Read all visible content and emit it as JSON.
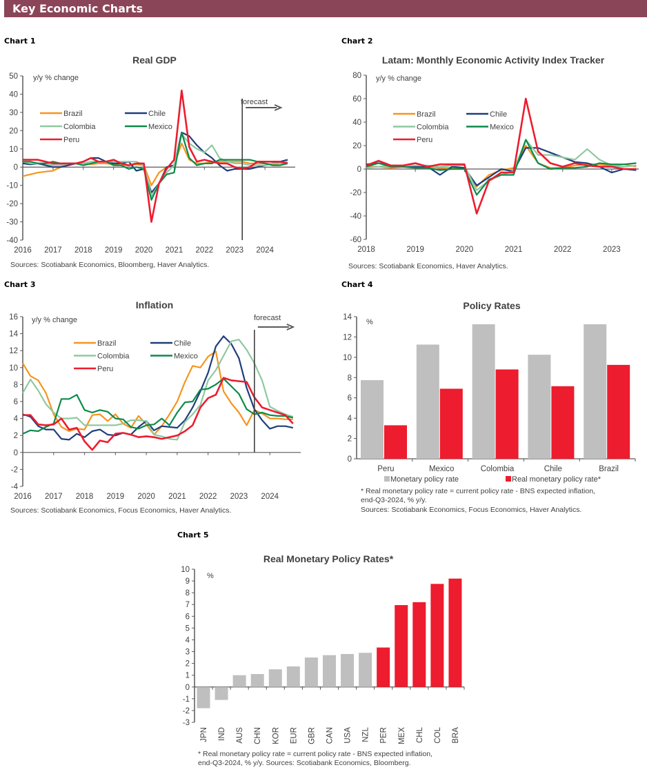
{
  "header": {
    "title": "Key Economic Charts",
    "color": "#8b4559"
  },
  "colors": {
    "Brazil": "#f7941d",
    "Chile": "#1f3d7a",
    "Colombia": "#8fc8a0",
    "Mexico": "#0a8a4a",
    "Peru": "#ed1c2e",
    "gray_bar": "#bfbfbf",
    "red_bar": "#ed1c2e"
  },
  "chart_data": [
    {
      "label": "Chart 1",
      "type": "line",
      "title": "Real GDP",
      "ylabel": "y/y % change",
      "xlim": [
        2016,
        2025
      ],
      "ylim": [
        -40,
        50
      ],
      "yticks": [
        "50",
        "40",
        "30",
        "20",
        "10",
        "0",
        "-10",
        "-20",
        "-30",
        "-40"
      ],
      "xticks": [
        "2016",
        "2017",
        "2018",
        "2019",
        "2020",
        "2021",
        "2022",
        "2023",
        "2024"
      ],
      "forecast_from": 2023.25,
      "forecast_label": "forecast",
      "source": "Sources: Scotiabank Economics, Bloomberg, Haver Analytics.",
      "x": [
        2016,
        2016.25,
        2016.5,
        2016.75,
        2017,
        2017.25,
        2017.5,
        2017.75,
        2018,
        2018.25,
        2018.5,
        2018.75,
        2019,
        2019.25,
        2019.5,
        2019.75,
        2020,
        2020.25,
        2020.5,
        2020.75,
        2021,
        2021.25,
        2021.5,
        2021.75,
        2022,
        2022.25,
        2022.5,
        2022.75,
        2023,
        2023.25,
        2023.5,
        2023.75,
        2024,
        2024.25,
        2024.5,
        2024.75
      ],
      "series": [
        {
          "name": "Brazil",
          "values": [
            -5,
            -4,
            -3,
            -2.5,
            -2,
            0,
            1,
            2,
            2,
            1.5,
            2,
            2,
            1.5,
            1,
            1,
            1.5,
            1,
            -10,
            -3,
            0,
            1,
            13,
            4,
            2,
            2,
            3,
            3,
            3,
            3,
            3,
            2,
            2,
            2,
            1.5,
            2,
            2
          ]
        },
        {
          "name": "Chile",
          "values": [
            2,
            1.5,
            2,
            1,
            0,
            0,
            1,
            2,
            3,
            5,
            5,
            3,
            2,
            2,
            3,
            -2,
            -1,
            -14,
            -9,
            0,
            1,
            19,
            17,
            12,
            8,
            5,
            1,
            -2,
            -1,
            -1,
            -1,
            0,
            1,
            2,
            3,
            4
          ]
        },
        {
          "name": "Colombia",
          "values": [
            3,
            2,
            2,
            2,
            1,
            1,
            2,
            2,
            2,
            3,
            3,
            3,
            3,
            3,
            3,
            3,
            1,
            -16,
            -9,
            -3,
            1,
            18,
            13,
            10,
            8,
            12,
            5,
            3,
            2,
            2,
            1,
            1,
            1,
            2,
            2,
            3
          ]
        },
        {
          "name": "Mexico",
          "values": [
            3,
            3,
            2,
            2,
            3,
            2,
            2,
            2,
            1,
            2,
            3,
            3,
            1,
            1,
            -1,
            0,
            -1,
            -18,
            -9,
            -4,
            -3,
            19,
            5,
            1,
            2,
            2,
            4,
            4,
            4,
            4,
            4,
            3,
            2,
            1,
            1,
            2
          ]
        },
        {
          "name": "Peru",
          "values": [
            4,
            4,
            4,
            3,
            2,
            2,
            2,
            2,
            3,
            5,
            3,
            3,
            4,
            2,
            1,
            2,
            2,
            -30,
            -9,
            -1,
            4,
            42,
            11,
            3,
            4,
            3,
            2,
            2,
            0,
            -1,
            0,
            3,
            3,
            3,
            3,
            2
          ]
        }
      ]
    },
    {
      "label": "Chart 2",
      "type": "line",
      "title": "Latam: Monthly Economic Activity Index Tracker",
      "ylabel": "y/y % change",
      "xlim": [
        2018,
        2023.55
      ],
      "ylim": [
        -60,
        80
      ],
      "yticks": [
        "80",
        "60",
        "40",
        "20",
        "0",
        "-20",
        "-40",
        "-60"
      ],
      "xticks": [
        "2018",
        "2019",
        "2020",
        "2021",
        "2022",
        "2023"
      ],
      "source": "Sources: Scotiabank Economics, Haver Analytics.",
      "x": [
        2018,
        2018.25,
        2018.5,
        2018.75,
        2019,
        2019.25,
        2019.5,
        2019.75,
        2020,
        2020.25,
        2020.5,
        2020.75,
        2021,
        2021.25,
        2021.5,
        2021.75,
        2022,
        2022.25,
        2022.5,
        2022.75,
        2023,
        2023.25,
        2023.5
      ],
      "series": [
        {
          "name": "Brazil",
          "values": [
            2,
            2,
            1,
            2,
            1,
            2,
            1,
            1,
            1,
            -15,
            -5,
            -1,
            1,
            20,
            5,
            1,
            1,
            3,
            4,
            4,
            3,
            4,
            2
          ]
        },
        {
          "name": "Chile",
          "values": [
            4,
            5,
            3,
            2,
            2,
            2,
            -5,
            2,
            1,
            -14,
            -7,
            0,
            -2,
            18,
            18,
            14,
            10,
            6,
            5,
            2,
            -3,
            0,
            -1
          ]
        },
        {
          "name": "Colombia",
          "values": [
            1,
            2,
            3,
            3,
            3,
            3,
            2,
            3,
            3,
            -18,
            -10,
            -5,
            -2,
            25,
            12,
            12,
            10,
            8,
            17,
            8,
            3,
            2,
            3
          ]
        },
        {
          "name": "Mexico",
          "values": [
            2,
            5,
            2,
            2,
            1,
            1,
            -1,
            0,
            0,
            -22,
            -9,
            -5,
            -5,
            25,
            5,
            0,
            1,
            1,
            2,
            5,
            4,
            4,
            5
          ]
        },
        {
          "name": "Peru",
          "values": [
            3,
            7,
            3,
            3,
            5,
            2,
            4,
            4,
            4,
            -38,
            -10,
            -3,
            -3,
            60,
            15,
            5,
            2,
            5,
            3,
            2,
            2,
            0,
            0
          ]
        }
      ]
    },
    {
      "label": "Chart 3",
      "type": "line",
      "title": "Inflation",
      "ylabel": "y/y % change",
      "xlim": [
        2016,
        2025
      ],
      "ylim": [
        -4,
        16
      ],
      "yticks": [
        "16",
        "14",
        "12",
        "10",
        "8",
        "6",
        "4",
        "2",
        "0",
        "-2",
        "-4"
      ],
      "xticks": [
        "2016",
        "2017",
        "2018",
        "2019",
        "2020",
        "2021",
        "2022",
        "2023",
        "2024"
      ],
      "forecast_from": 2023.5,
      "forecast_label": "forecast",
      "source": "Sources: Scotiabank Economics, Focus Economics, Haver Analytics.",
      "x": [
        2016,
        2016.25,
        2016.5,
        2016.75,
        2017,
        2017.25,
        2017.5,
        2017.75,
        2018,
        2018.25,
        2018.5,
        2018.75,
        2019,
        2019.25,
        2019.5,
        2019.75,
        2020,
        2020.25,
        2020.5,
        2020.75,
        2021,
        2021.25,
        2021.5,
        2021.75,
        2022,
        2022.25,
        2022.5,
        2022.75,
        2023,
        2023.25,
        2023.5,
        2023.75,
        2024,
        2024.25,
        2024.5,
        2024.75
      ],
      "series": [
        {
          "name": "Brazil",
          "values": [
            10.5,
            9,
            8.5,
            7,
            4.5,
            3,
            2.5,
            2.8,
            2.7,
            4.4,
            4.5,
            3.7,
            4.5,
            3.4,
            2.9,
            4.3,
            3.3,
            2.1,
            3.1,
            4.5,
            6,
            8.3,
            10.2,
            10,
            11.3,
            11.9,
            7.2,
            5.8,
            4.7,
            3.2,
            5,
            4.6,
            4,
            4,
            3.9,
            3.9
          ]
        },
        {
          "name": "Chile",
          "values": [
            4.5,
            4.2,
            3.1,
            2.7,
            2.7,
            1.6,
            1.5,
            2.2,
            1.8,
            2.5,
            2.7,
            2.1,
            2,
            2.3,
            2.1,
            3,
            3.7,
            2.6,
            3.1,
            3,
            2.9,
            3.8,
            5.3,
            7.2,
            9.4,
            12.5,
            13.7,
            12.8,
            11.1,
            7.6,
            5.1,
            3.8,
            2.8,
            3.1,
            3.1,
            2.9
          ]
        },
        {
          "name": "Colombia",
          "values": [
            7,
            8.6,
            7.3,
            5.7,
            4.7,
            4,
            4,
            4.1,
            3.2,
            3.2,
            3.2,
            3.2,
            3.2,
            3.4,
            3.8,
            3.8,
            3.7,
            2.1,
            1.9,
            1.6,
            1.5,
            3.6,
            4.5,
            5.6,
            8.5,
            9.7,
            11.4,
            13.1,
            13.3,
            12.1,
            10.5,
            8.5,
            5.4,
            4.9,
            4.5,
            4.2
          ]
        },
        {
          "name": "Mexico",
          "values": [
            2.2,
            2.6,
            2.5,
            3,
            3.4,
            6.3,
            6.3,
            6.8,
            5,
            4.7,
            5,
            4.8,
            4,
            3.9,
            3,
            2.8,
            3.2,
            3.3,
            4,
            3.2,
            4.7,
            5.9,
            6,
            7.4,
            7.5,
            8,
            8.7,
            7.8,
            6.9,
            5.1,
            4.5,
            4.7,
            4.4,
            4.3,
            4.3,
            4.1
          ]
        },
        {
          "name": "Peru",
          "values": [
            4.4,
            4.4,
            3.3,
            3.2,
            3.3,
            4,
            2.7,
            2.9,
            1.3,
            0.3,
            1.4,
            1.2,
            2.2,
            2.3,
            2.1,
            1.8,
            1.9,
            1.8,
            1.6,
            1.8,
            2,
            2.5,
            3.2,
            5.3,
            6.4,
            6.8,
            8.8,
            8.5,
            8.4,
            8.3,
            6.5,
            5.3,
            5,
            4.7,
            4.4,
            3.4
          ]
        }
      ]
    },
    {
      "label": "Chart 4",
      "type": "bar",
      "title": "Policy Rates",
      "ylabel": "%",
      "ylim": [
        0,
        14
      ],
      "yticks": [
        "14",
        "12",
        "10",
        "8",
        "6",
        "4",
        "2",
        "0"
      ],
      "categories": [
        "Peru",
        "Mexico",
        "Colombia",
        "Chile",
        "Brazil"
      ],
      "series": [
        {
          "name": "Monetary policy rate",
          "values": [
            7.75,
            11.25,
            13.25,
            10.25,
            13.25
          ]
        },
        {
          "name": "Real monetary policy rate*",
          "values": [
            3.3,
            6.9,
            8.8,
            7.15,
            9.25
          ]
        }
      ],
      "footnote": [
        "* Real monetary policy rate = current policy rate - BNS expected inflation,",
        "end-Q3-2024, % y/y."
      ],
      "source": "Sources: Scotiabank Economics, Focus Economics, Haver Analytics."
    },
    {
      "label": "Chart 5",
      "type": "bar",
      "title": "Real Monetary Policy Rates*",
      "ylabel": "%",
      "ylim": [
        -3,
        10
      ],
      "yticks": [
        "10",
        "9",
        "8",
        "7",
        "6",
        "5",
        "4",
        "3",
        "2",
        "1",
        "0",
        "-1",
        "-2",
        "-3"
      ],
      "categories": [
        "JPN",
        "IND",
        "AUS",
        "CHN",
        "KOR",
        "EUR",
        "GBR",
        "CAN",
        "USA",
        "NZL",
        "PER",
        "MEX",
        "CHL",
        "COL",
        "BRA"
      ],
      "values": [
        -1.8,
        -1.1,
        1.0,
        1.1,
        1.5,
        1.75,
        2.5,
        2.7,
        2.8,
        2.9,
        3.35,
        6.95,
        7.2,
        8.75,
        9.2
      ],
      "highlighted": [
        "PER",
        "MEX",
        "CHL",
        "COL",
        "BRA"
      ],
      "footnote": [
        "* Real monetary policy rate = current policy rate - BNS expected inflation,",
        "end-Q3-2024, % y/y. Sources: Scotiabank Economics, Bloomberg."
      ]
    }
  ]
}
